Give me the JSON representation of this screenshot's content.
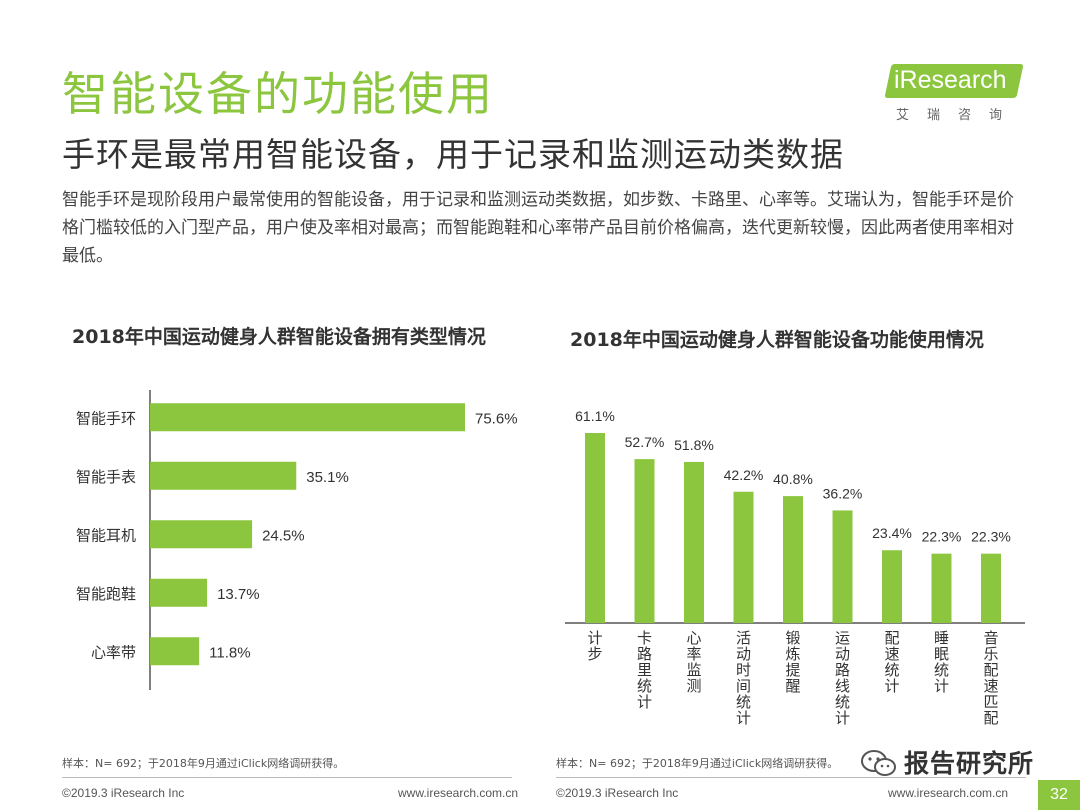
{
  "header": {
    "title": "智能设备的功能使用",
    "subtitle": "手环是最常用智能设备，用于记录和监测运动类数据",
    "description": "智能手环是现阶段用户最常使用的智能设备，用于记录和监测运动类数据，如步数、卡路里、心率等。艾瑞认为，智能手环是价格门槛较低的入门型产品，用户使及率相对最高；而智能跑鞋和心率带产品目前价格偏高，迭代更新较慢，因此两者使用率相对最低。"
  },
  "logo": {
    "brand": "iResearch",
    "cn": "艾瑞咨询"
  },
  "chart_data": [
    {
      "type": "bar",
      "orientation": "horizontal",
      "title": "2018年中国运动健身人群智能设备拥有类型情况",
      "categories": [
        "智能手环",
        "智能手表",
        "智能耳机",
        "智能跑鞋",
        "心率带"
      ],
      "values": [
        75.6,
        35.1,
        24.5,
        13.7,
        11.8
      ],
      "labels": [
        "75.6%",
        "35.1%",
        "24.5%",
        "13.7%",
        "11.8%"
      ],
      "bar_color": "#8cc63f",
      "note": "样本：N= 692；于2018年9月通过iClick网络调研获得。"
    },
    {
      "type": "bar",
      "orientation": "vertical",
      "title": "2018年中国运动健身人群智能设备功能使用情况",
      "categories": [
        "计步",
        "卡路里统计",
        "心率监测",
        "活动时间统计",
        "锻炼提醒",
        "运动路线统计",
        "配速统计",
        "睡眠统计",
        "音乐配速匹配"
      ],
      "values": [
        61.1,
        52.7,
        51.8,
        42.2,
        40.8,
        36.2,
        23.4,
        22.3,
        22.3
      ],
      "labels": [
        "61.1%",
        "52.7%",
        "51.8%",
        "42.2%",
        "40.8%",
        "36.2%",
        "23.4%",
        "22.3%",
        "22.3%"
      ],
      "bar_color": "#8cc63f",
      "note": "样本：N= 692；于2018年9月通过iClick网络调研获得。"
    }
  ],
  "footer": {
    "left1": "©2019.3  iResearch Inc",
    "right1": "www.iresearch.com.cn",
    "left2": "©2019.3  iResearch Inc",
    "right2": "www.iresearch.com.cn",
    "watermark": "报告研究所",
    "page": "32"
  }
}
